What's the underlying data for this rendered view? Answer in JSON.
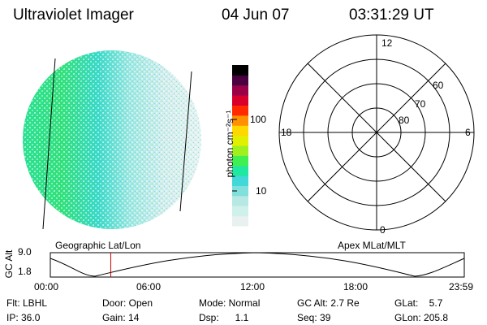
{
  "header": {
    "instrument": "Ultraviolet Imager",
    "date": "04 Jun 07",
    "time": "03:31:29 UT"
  },
  "colorbar": {
    "unit_label": "photon cm⁻²s⁻¹",
    "ticks": [
      "100",
      "10"
    ],
    "colors": [
      "#e8f0f0",
      "#d0f0ec",
      "#b8e8e4",
      "#7fe0dc",
      "#40d8d8",
      "#20e8a0",
      "#40f050",
      "#a0f020",
      "#e0f000",
      "#ffd800",
      "#ff9000",
      "#ff2a00",
      "#d8002a",
      "#9a0048",
      "#4a0040",
      "#000000"
    ]
  },
  "polar_plot": {
    "lat_labels": [
      "60",
      "70",
      "80"
    ],
    "mlt_labels": [
      "12",
      "18",
      "6",
      "0"
    ]
  },
  "timeline": {
    "y_axis_title": "GC Alt",
    "y_ticks": [
      "9.0",
      "1.8"
    ],
    "left_title": "Geographic Lat/Lon",
    "right_title": "Apex MLat/MLT",
    "time_ticks": [
      "00:00",
      "06:00",
      "12:00",
      "18:00",
      "23:59"
    ],
    "current_time_fraction": 0.146
  },
  "status": {
    "filter": "Flt: LBHL",
    "door": "Door: Open",
    "mode": "Mode: Normal",
    "gc_alt": "GC Alt: 2.7 Re",
    "glat": "GLat:    5.7",
    "ip": "IP: 36.0",
    "gain": "Gain: 14",
    "dsp": "Dsp:      1.1",
    "seq": "Seq: 39",
    "glon": "GLon: 205.8"
  }
}
